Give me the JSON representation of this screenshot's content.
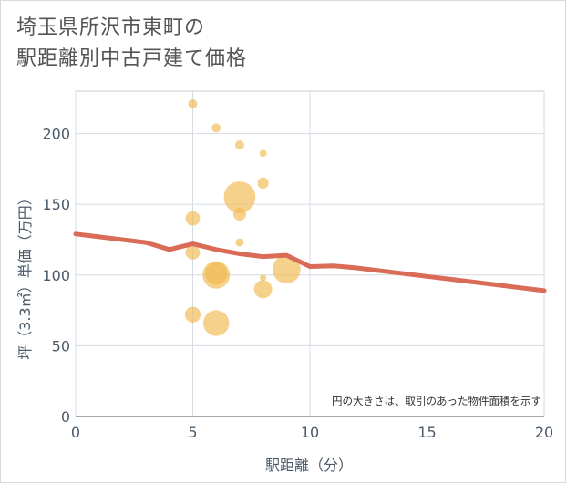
{
  "title": {
    "line1": "埼玉県所沢市東町の",
    "line2": "駅距離別中古戸建て価格"
  },
  "chart_data": {
    "type": "scatter",
    "xlabel": "駅距離（分）",
    "ylabel": "坪（3.3㎡）単価（万円）",
    "xlim": [
      0,
      20
    ],
    "ylim": [
      0,
      230
    ],
    "xticks": [
      0,
      5,
      10,
      15,
      20
    ],
    "yticks": [
      0,
      50,
      100,
      150,
      200
    ],
    "grid": true,
    "note": "円の大きさは、取引のあった物件面積を示す",
    "bubble_color": "#f0b84f",
    "line_color": "#d96b57",
    "bubbles": [
      {
        "x": 5,
        "y": 221,
        "size": 1
      },
      {
        "x": 6,
        "y": 204,
        "size": 1
      },
      {
        "x": 7,
        "y": 192,
        "size": 1
      },
      {
        "x": 8,
        "y": 186,
        "size": 0.6
      },
      {
        "x": 8,
        "y": 165,
        "size": 1.5
      },
      {
        "x": 7,
        "y": 155,
        "size": 12
      },
      {
        "x": 7,
        "y": 143,
        "size": 2
      },
      {
        "x": 5,
        "y": 140,
        "size": 2.5
      },
      {
        "x": 7,
        "y": 123,
        "size": 0.8
      },
      {
        "x": 5,
        "y": 116,
        "size": 2.5
      },
      {
        "x": 6,
        "y": 101,
        "size": 6
      },
      {
        "x": 6,
        "y": 100,
        "size": 9
      },
      {
        "x": 9,
        "y": 104,
        "size": 9.5
      },
      {
        "x": 8,
        "y": 98,
        "size": 0.5
      },
      {
        "x": 8,
        "y": 90,
        "size": 4
      },
      {
        "x": 5,
        "y": 72,
        "size": 3
      },
      {
        "x": 6,
        "y": 66,
        "size": 8
      }
    ],
    "series": [
      {
        "name": "trend",
        "x": [
          0,
          1,
          2,
          3,
          4,
          5,
          6,
          7,
          8,
          9,
          10,
          11,
          12,
          13,
          14,
          15,
          16,
          17,
          18,
          19,
          20
        ],
        "values": [
          129,
          127,
          125,
          123,
          118,
          122,
          118,
          115,
          113,
          114,
          106,
          106.5,
          105,
          103,
          101,
          99,
          97,
          95,
          93,
          91,
          89
        ]
      }
    ]
  }
}
